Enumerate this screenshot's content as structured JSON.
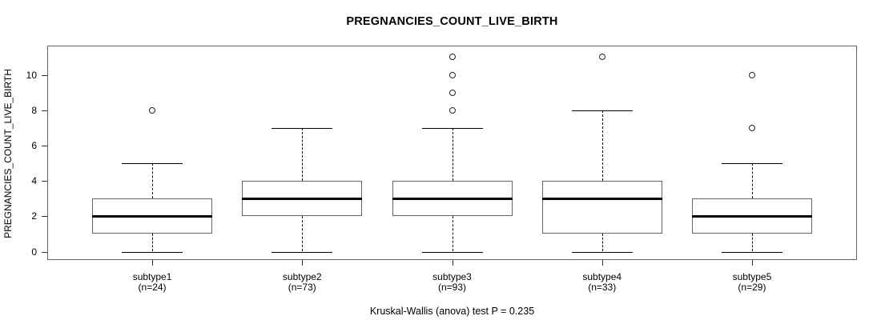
{
  "title": "PREGNANCIES_COUNT_LIVE_BIRTH",
  "caption": "Kruskal-Wallis (anova) test P = 0.235",
  "colors": {
    "line": "#000000",
    "frame_border": "#666666",
    "background": "#ffffff"
  },
  "chart_data": {
    "type": "boxplot",
    "title": "PREGNANCIES_COUNT_LIVE_BIRTH",
    "xlabel": "",
    "ylabel": "PREGNANCIES_COUNT_LIVE_BIRTH",
    "annotation": "Kruskal-Wallis (anova) test P = 0.235",
    "grid": false,
    "legend": "none",
    "yticks": [
      0,
      2,
      4,
      6,
      8,
      10
    ],
    "ylim": [
      -0.5,
      11.7
    ],
    "categories": [
      "subtype1",
      "subtype2",
      "subtype3",
      "subtype4",
      "subtype5"
    ],
    "groups": [
      {
        "label": "subtype1",
        "sublabel": "(n=24)",
        "n": 24,
        "whisker_low": 0,
        "q1": 1,
        "median": 2,
        "q3": 3,
        "whisker_high": 5,
        "outliers": [
          8
        ]
      },
      {
        "label": "subtype2",
        "sublabel": "(n=73)",
        "n": 73,
        "whisker_low": 0,
        "q1": 2,
        "median": 3,
        "q3": 4,
        "whisker_high": 7,
        "outliers": []
      },
      {
        "label": "subtype3",
        "sublabel": "(n=93)",
        "n": 93,
        "whisker_low": 0,
        "q1": 2,
        "median": 3,
        "q3": 4,
        "whisker_high": 7,
        "outliers": [
          8,
          9,
          10,
          11
        ]
      },
      {
        "label": "subtype4",
        "sublabel": "(n=33)",
        "n": 33,
        "whisker_low": 0,
        "q1": 1,
        "median": 3,
        "q3": 4,
        "whisker_high": 8,
        "outliers": [
          11
        ]
      },
      {
        "label": "subtype5",
        "sublabel": "(n=29)",
        "n": 29,
        "whisker_low": 0,
        "q1": 1,
        "median": 2,
        "q3": 3,
        "whisker_high": 5,
        "outliers": [
          7,
          10
        ]
      }
    ]
  }
}
